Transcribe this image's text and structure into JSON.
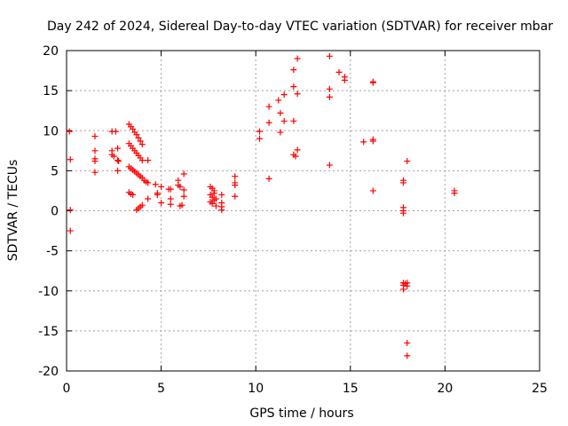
{
  "chart_data": {
    "type": "scatter",
    "title": "Day 242 of 2024, Sidereal Day-to-day VTEC variation (SDTVAR) for receiver mbar",
    "xlabel": "GPS time / hours",
    "ylabel": "SDTVAR / TECUs",
    "xlim": [
      0,
      25
    ],
    "ylim": [
      -20,
      20
    ],
    "xticks": [
      0,
      5,
      10,
      15,
      20,
      25
    ],
    "yticks": [
      -20,
      -15,
      -10,
      -5,
      0,
      5,
      10,
      15,
      20
    ],
    "grid": true,
    "marker": "+",
    "color": "#ff0000",
    "series": [
      {
        "name": "SDTVAR",
        "points": [
          [
            0.15,
            9.9
          ],
          [
            0.2,
            6.4
          ],
          [
            0.2,
            0.1
          ],
          [
            0.2,
            -2.5
          ],
          [
            1.5,
            9.3
          ],
          [
            1.5,
            7.5
          ],
          [
            1.5,
            6.5
          ],
          [
            1.5,
            6.2
          ],
          [
            1.5,
            4.8
          ],
          [
            2.4,
            9.9
          ],
          [
            2.4,
            7.5
          ],
          [
            2.4,
            7.0
          ],
          [
            2.5,
            6.8
          ],
          [
            2.6,
            9.9
          ],
          [
            2.7,
            7.8
          ],
          [
            2.7,
            6.3
          ],
          [
            2.75,
            6.2
          ],
          [
            2.7,
            5.0
          ],
          [
            3.3,
            10.8
          ],
          [
            3.4,
            10.5
          ],
          [
            3.5,
            10.2
          ],
          [
            3.6,
            9.8
          ],
          [
            3.7,
            9.5
          ],
          [
            3.8,
            9.1
          ],
          [
            3.9,
            8.7
          ],
          [
            4.0,
            8.3
          ],
          [
            3.3,
            8.4
          ],
          [
            3.4,
            8.1
          ],
          [
            3.5,
            7.8
          ],
          [
            3.6,
            7.5
          ],
          [
            3.7,
            7.2
          ],
          [
            3.8,
            6.9
          ],
          [
            3.9,
            6.6
          ],
          [
            4.0,
            6.3
          ],
          [
            3.3,
            5.5
          ],
          [
            3.4,
            5.3
          ],
          [
            3.5,
            5.1
          ],
          [
            3.6,
            4.9
          ],
          [
            3.7,
            4.7
          ],
          [
            3.8,
            4.5
          ],
          [
            3.9,
            4.3
          ],
          [
            4.0,
            4.1
          ],
          [
            4.1,
            3.8
          ],
          [
            4.2,
            3.6
          ],
          [
            3.3,
            2.3
          ],
          [
            3.4,
            2.1
          ],
          [
            3.5,
            2.0
          ],
          [
            3.7,
            0.1
          ],
          [
            3.8,
            0.3
          ],
          [
            3.9,
            0.5
          ],
          [
            4.0,
            0.7
          ],
          [
            4.3,
            6.3
          ],
          [
            4.3,
            3.5
          ],
          [
            4.3,
            1.5
          ],
          [
            4.7,
            3.3
          ],
          [
            4.8,
            2.2
          ],
          [
            4.8,
            2.0
          ],
          [
            5.0,
            3.0
          ],
          [
            5.0,
            1.0
          ],
          [
            5.4,
            2.7
          ],
          [
            5.5,
            2.7
          ],
          [
            5.5,
            1.5
          ],
          [
            5.5,
            0.8
          ],
          [
            5.9,
            3.8
          ],
          [
            5.9,
            3.2
          ],
          [
            6.0,
            3.0
          ],
          [
            6.0,
            0.6
          ],
          [
            6.1,
            0.7
          ],
          [
            6.2,
            4.6
          ],
          [
            6.2,
            2.6
          ],
          [
            6.2,
            1.8
          ],
          [
            7.6,
            3.0
          ],
          [
            7.7,
            2.8
          ],
          [
            7.8,
            2.5
          ],
          [
            7.6,
            2.0
          ],
          [
            7.7,
            1.7
          ],
          [
            7.8,
            1.3
          ],
          [
            7.6,
            1.1
          ],
          [
            7.7,
            0.9
          ],
          [
            7.9,
            0.6
          ],
          [
            7.8,
            2.2
          ],
          [
            7.9,
            1.5
          ],
          [
            8.2,
            2.0
          ],
          [
            8.2,
            1.0
          ],
          [
            8.2,
            0.5
          ],
          [
            8.2,
            0.1
          ],
          [
            8.9,
            4.3
          ],
          [
            8.9,
            3.5
          ],
          [
            8.9,
            3.2
          ],
          [
            8.9,
            1.8
          ],
          [
            10.2,
            9.9
          ],
          [
            10.2,
            9.0
          ],
          [
            10.7,
            13.0
          ],
          [
            10.7,
            11.0
          ],
          [
            10.7,
            4.0
          ],
          [
            11.2,
            13.8
          ],
          [
            11.3,
            12.2
          ],
          [
            11.3,
            9.8
          ],
          [
            11.5,
            14.5
          ],
          [
            11.5,
            11.2
          ],
          [
            12.0,
            17.6
          ],
          [
            12.0,
            15.5
          ],
          [
            12.0,
            11.2
          ],
          [
            12.0,
            7.0
          ],
          [
            12.1,
            6.8
          ],
          [
            12.2,
            19.0
          ],
          [
            12.2,
            14.6
          ],
          [
            12.2,
            7.6
          ],
          [
            13.9,
            19.3
          ],
          [
            13.9,
            15.2
          ],
          [
            13.9,
            14.2
          ],
          [
            13.9,
            5.7
          ],
          [
            14.4,
            17.3
          ],
          [
            14.7,
            16.7
          ],
          [
            14.7,
            16.3
          ],
          [
            15.7,
            8.6
          ],
          [
            16.2,
            16.1
          ],
          [
            16.2,
            16.0
          ],
          [
            16.2,
            8.9
          ],
          [
            16.2,
            8.7
          ],
          [
            16.2,
            2.5
          ],
          [
            17.8,
            3.8
          ],
          [
            17.8,
            3.5
          ],
          [
            17.8,
            0.4
          ],
          [
            17.8,
            0.0
          ],
          [
            17.8,
            -0.3
          ],
          [
            17.8,
            -9.0
          ],
          [
            17.8,
            -9.3
          ],
          [
            17.8,
            -9.8
          ],
          [
            17.9,
            -9.1
          ],
          [
            18.0,
            -9.0
          ],
          [
            18.0,
            -9.4
          ],
          [
            18.0,
            6.2
          ],
          [
            18.0,
            -16.5
          ],
          [
            18.0,
            -18.1
          ],
          [
            20.5,
            2.5
          ],
          [
            20.5,
            2.2
          ]
        ]
      }
    ]
  }
}
